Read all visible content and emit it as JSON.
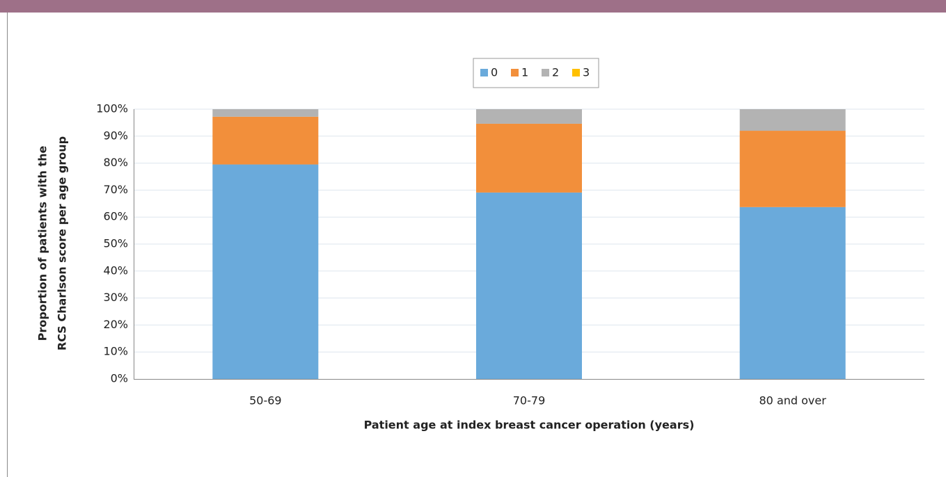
{
  "chart_data": {
    "type": "stacked_bar",
    "categories": [
      "50-69",
      "70-79",
      "80  and over"
    ],
    "series": [
      {
        "name": "0",
        "color": "#6aaadb",
        "values": [
          79.5,
          69.1,
          63.7
        ]
      },
      {
        "name": "1",
        "color": "#f28f3b",
        "values": [
          17.7,
          25.5,
          28.3
        ]
      },
      {
        "name": "2",
        "color": "#b3b3b3",
        "values": [
          2.8,
          5.4,
          8.0
        ]
      },
      {
        "name": "3",
        "color": "#ffc000",
        "values": [
          0,
          0,
          0
        ]
      }
    ],
    "ylim": [
      0,
      100
    ],
    "yticks": [
      {
        "value": 0,
        "label": "0%"
      },
      {
        "value": 10,
        "label": "10%"
      },
      {
        "value": 20,
        "label": "20%"
      },
      {
        "value": 30,
        "label": "30%"
      },
      {
        "value": 40,
        "label": "40%"
      },
      {
        "value": 50,
        "label": "50%"
      },
      {
        "value": 60,
        "label": "60%"
      },
      {
        "value": 70,
        "label": "70%"
      },
      {
        "value": 80,
        "label": "80%"
      },
      {
        "value": 90,
        "label": "90%"
      },
      {
        "value": 100,
        "label": "100%"
      }
    ],
    "ylabel": [
      "Proportion of patients with the",
      "RCS Charlson score per age group"
    ],
    "xlabel": "Patient age at index breast cancer operation (years)",
    "grid": true,
    "legend": "top"
  }
}
